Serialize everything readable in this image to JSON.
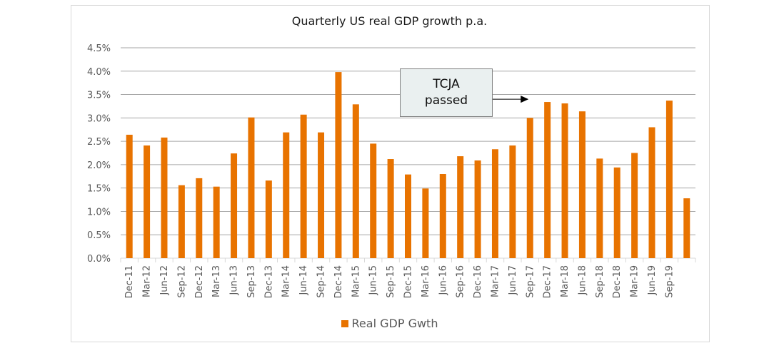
{
  "chart_data": {
    "type": "bar",
    "title": "Quarterly US real GDP growth p.a.",
    "xlabel": "",
    "ylabel": "",
    "ylim": [
      0,
      4.5
    ],
    "yticks": [
      "0.0%",
      "0.5%",
      "1.0%",
      "1.5%",
      "2.0%",
      "2.5%",
      "3.0%",
      "3.5%",
      "4.0%",
      "4.5%"
    ],
    "ytick_values": [
      0,
      0.5,
      1,
      1.5,
      2,
      2.5,
      3,
      3.5,
      4,
      4.5
    ],
    "grid": true,
    "legend_position": "bottom",
    "categories": [
      "Dec-11",
      "Mar-12",
      "Jun-12",
      "Sep-12",
      "Dec-12",
      "Mar-13",
      "Jun-13",
      "Sep-13",
      "Dec-13",
      "Mar-14",
      "Jun-14",
      "Sep-14",
      "Dec-14",
      "Mar-15",
      "Jun-15",
      "Sep-15",
      "Dec-15",
      "Mar-16",
      "Jun-16",
      "Sep-16",
      "Dec-16",
      "Mar-17",
      "Jun-17",
      "Sep-17",
      "Dec-17",
      "Mar-18",
      "Jun-18",
      "Sep-18",
      "Dec-18",
      "Mar-19",
      "Jun-19",
      "Sep-19",
      ""
    ],
    "series": [
      {
        "name": "Real GDP Gwth",
        "color": "#e87300",
        "values": [
          2.64,
          2.41,
          2.58,
          1.56,
          1.71,
          1.53,
          2.24,
          3.01,
          1.66,
          2.69,
          3.07,
          2.69,
          3.98,
          3.29,
          2.45,
          2.12,
          1.79,
          1.49,
          1.8,
          2.18,
          2.09,
          2.33,
          2.41,
          3.0,
          3.34,
          3.31,
          3.14,
          2.13,
          1.94,
          2.25,
          2.8,
          3.37,
          1.28
        ]
      }
    ],
    "annotations": [
      {
        "text": "TCJA\npassed",
        "arrow_target_category": "Sep-17",
        "arrow_level": 3.4
      }
    ]
  }
}
